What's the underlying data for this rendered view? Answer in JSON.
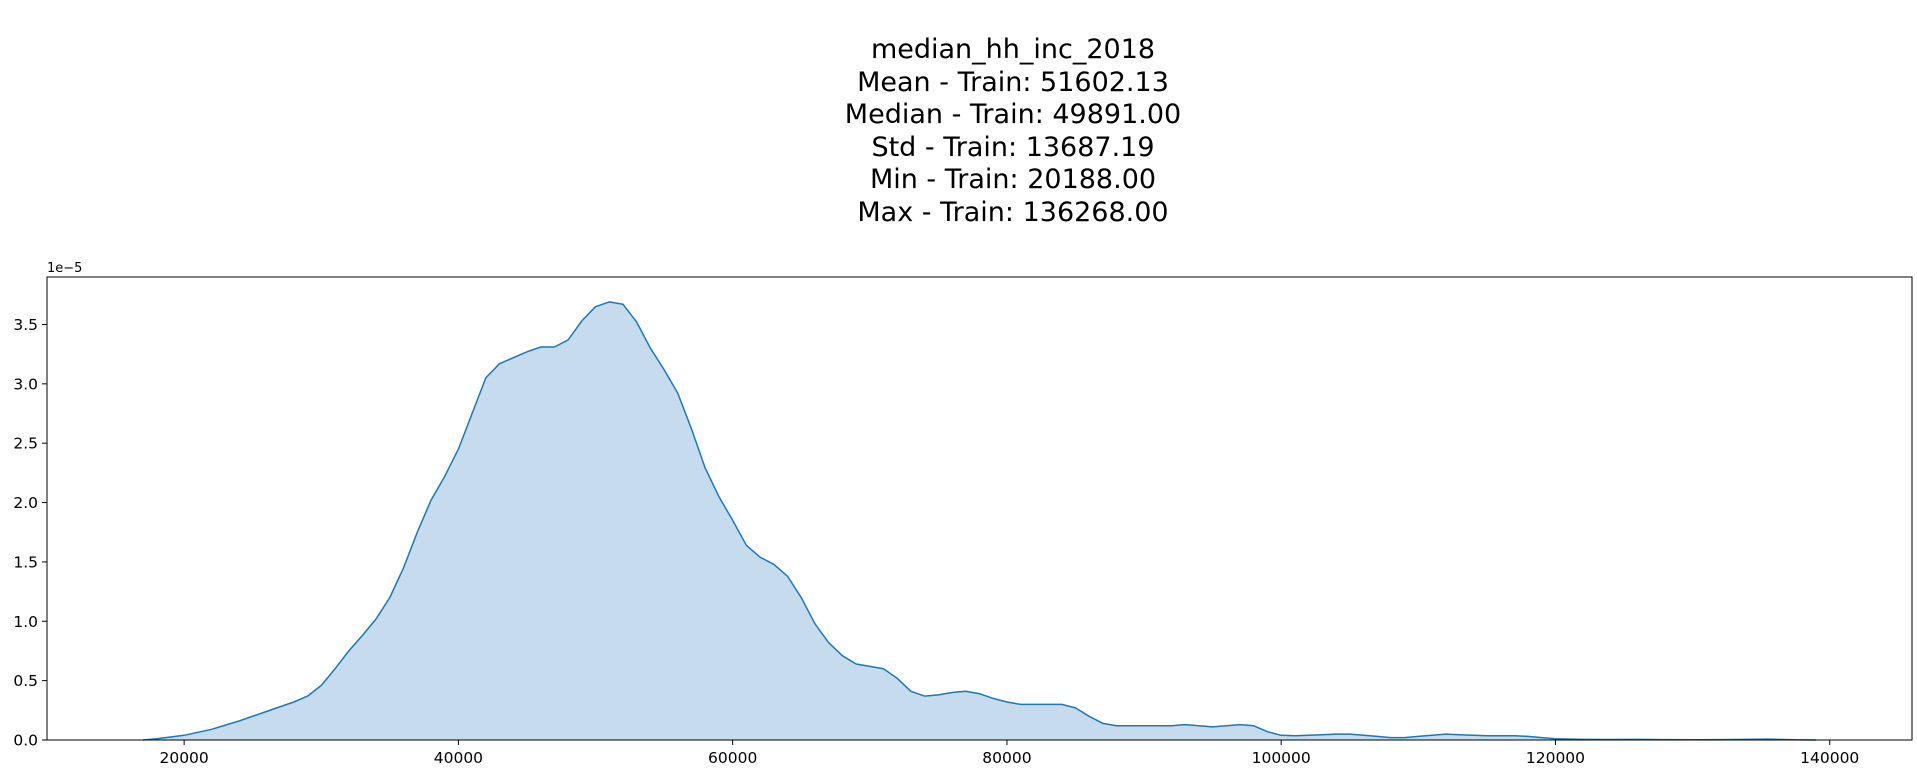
{
  "title_lines": [
    "median_hh_inc_2018",
    "Mean - Train: 51602.13",
    "Median - Train: 49891.00",
    "Std - Train: 13687.19",
    "Min - Train: 20188.00",
    "Max - Train: 136268.00"
  ],
  "chart_data": {
    "type": "area",
    "title": "median_hh_inc_2018",
    "xlabel": "",
    "ylabel": "",
    "y_offset_label": "1e−5",
    "xlim": [
      10000,
      146000
    ],
    "ylim": [
      0,
      3.9
    ],
    "xticks": [
      20000,
      40000,
      60000,
      80000,
      100000,
      120000,
      140000
    ],
    "xtick_labels": [
      "20000",
      "40000",
      "60000",
      "80000",
      "100000",
      "120000",
      "140000"
    ],
    "yticks": [
      0.0,
      0.5,
      1.0,
      1.5,
      2.0,
      2.5,
      3.0,
      3.5
    ],
    "ytick_labels": [
      "0.0",
      "0.5",
      "1.0",
      "1.5",
      "2.0",
      "2.5",
      "3.0",
      "3.5"
    ],
    "grid": false,
    "color": "#1f77b4",
    "fill_color": "#c6dbed",
    "series": [
      {
        "x": [
          17000,
          18000,
          20000,
          22000,
          24000,
          26000,
          28000,
          29000,
          30000,
          31000,
          32000,
          33000,
          34000,
          35000,
          36000,
          37000,
          38000,
          39000,
          40000,
          41000,
          42000,
          43000,
          44000,
          45000,
          46000,
          47000,
          48000,
          49000,
          50000,
          51000,
          52000,
          53000,
          54000,
          55000,
          56000,
          57000,
          58000,
          59000,
          60000,
          61000,
          62000,
          63000,
          64000,
          65000,
          66000,
          67000,
          68000,
          69000,
          70000,
          71000,
          72000,
          73000,
          74000,
          75000,
          76000,
          77000,
          78000,
          79000,
          80000,
          81000,
          82000,
          83000,
          84000,
          85000,
          86000,
          87000,
          88000,
          89000,
          90000,
          91000,
          92000,
          93000,
          94000,
          95000,
          96000,
          97000,
          98000,
          99000,
          100000,
          101000,
          102000,
          103000,
          104000,
          105000,
          106000,
          107000,
          108000,
          109000,
          110000,
          111000,
          112000,
          113000,
          114000,
          115000,
          116000,
          117000,
          118000,
          119000,
          120000,
          122000,
          124000,
          126000,
          128000,
          130000,
          132000,
          134000,
          135500,
          137000,
          138000,
          139000
        ],
        "y": [
          0,
          0.01,
          0.04,
          0.09,
          0.16,
          0.24,
          0.32,
          0.37,
          0.46,
          0.6,
          0.75,
          0.88,
          1.02,
          1.2,
          1.45,
          1.75,
          2.02,
          2.22,
          2.45,
          2.75,
          3.05,
          3.17,
          3.22,
          3.27,
          3.31,
          3.31,
          3.37,
          3.53,
          3.65,
          3.69,
          3.67,
          3.52,
          3.3,
          3.12,
          2.92,
          2.62,
          2.29,
          2.05,
          1.85,
          1.64,
          1.54,
          1.48,
          1.38,
          1.2,
          0.98,
          0.82,
          0.71,
          0.64,
          0.62,
          0.6,
          0.52,
          0.41,
          0.37,
          0.38,
          0.4,
          0.41,
          0.39,
          0.35,
          0.32,
          0.3,
          0.3,
          0.3,
          0.3,
          0.27,
          0.2,
          0.14,
          0.12,
          0.12,
          0.12,
          0.12,
          0.12,
          0.13,
          0.12,
          0.11,
          0.12,
          0.13,
          0.12,
          0.07,
          0.04,
          0.035,
          0.04,
          0.045,
          0.05,
          0.05,
          0.04,
          0.03,
          0.02,
          0.02,
          0.03,
          0.04,
          0.05,
          0.045,
          0.04,
          0.035,
          0.035,
          0.035,
          0.03,
          0.02,
          0.01,
          0.005,
          0.004,
          0.005,
          0.003,
          0.002,
          0.003,
          0.005,
          0.008,
          0.003,
          0.001,
          0
        ]
      }
    ]
  }
}
